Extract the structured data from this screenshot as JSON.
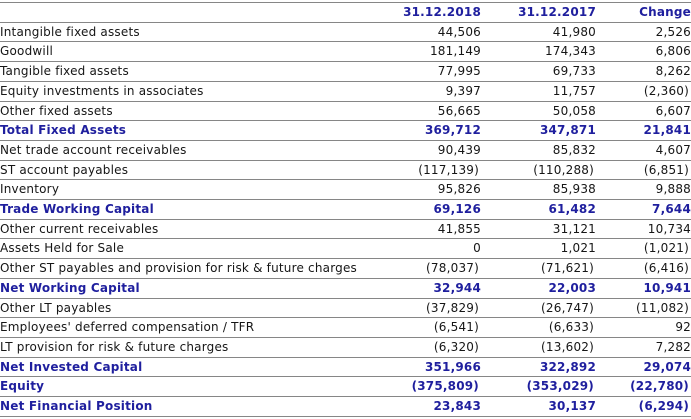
{
  "colors": {
    "accent_blue": "#1f1f9e",
    "body_text": "#161616",
    "rule_gray": "#868686",
    "background": "#ffffff"
  },
  "table": {
    "columns": [
      "",
      "31.12.2018",
      "31.12.2017",
      "Change"
    ],
    "rows": [
      {
        "label": "Intangible fixed assets",
        "v2018": "44,506",
        "v2017": "41,980",
        "change": "2,526",
        "emphasis": false
      },
      {
        "label": "Goodwill",
        "v2018": "181,149",
        "v2017": "174,343",
        "change": "6,806",
        "emphasis": false
      },
      {
        "label": "Tangible fixed assets",
        "v2018": "77,995",
        "v2017": "69,733",
        "change": "8,262",
        "emphasis": false
      },
      {
        "label": "Equity investments in associates",
        "v2018": "9,397",
        "v2017": "11,757",
        "change": "(2,360)",
        "emphasis": false
      },
      {
        "label": "Other fixed assets",
        "v2018": "56,665",
        "v2017": "50,058",
        "change": "6,607",
        "emphasis": false
      },
      {
        "label": "Total Fixed Assets",
        "v2018": "369,712",
        "v2017": "347,871",
        "change": "21,841",
        "emphasis": true
      },
      {
        "label": "Net trade account receivables",
        "v2018": "90,439",
        "v2017": "85,832",
        "change": "4,607",
        "emphasis": false
      },
      {
        "label": "ST account payables",
        "v2018": "(117,139)",
        "v2017": "(110,288)",
        "change": "(6,851)",
        "emphasis": false
      },
      {
        "label": "Inventory",
        "v2018": "95,826",
        "v2017": "85,938",
        "change": "9,888",
        "emphasis": false
      },
      {
        "label": "Trade Working Capital",
        "v2018": "69,126",
        "v2017": "61,482",
        "change": "7,644",
        "emphasis": true
      },
      {
        "label": "Other current receivables",
        "v2018": "41,855",
        "v2017": "31,121",
        "change": "10,734",
        "emphasis": false
      },
      {
        "label": "Assets Held for Sale",
        "v2018": "0",
        "v2017": "1,021",
        "change": "(1,021)",
        "emphasis": false
      },
      {
        "label": "Other ST payables and provision for risk & future charges",
        "v2018": "(78,037)",
        "v2017": "(71,621)",
        "change": "(6,416)",
        "emphasis": false
      },
      {
        "label": "Net Working Capital",
        "v2018": "32,944",
        "v2017": "22,003",
        "change": "10,941",
        "emphasis": true
      },
      {
        "label": "Other LT payables",
        "v2018": "(37,829)",
        "v2017": "(26,747)",
        "change": "(11,082)",
        "emphasis": false
      },
      {
        "label": "Employees' deferred compensation / TFR",
        "v2018": "(6,541)",
        "v2017": "(6,633)",
        "change": "92",
        "emphasis": false
      },
      {
        "label": "LT provision for risk & future charges",
        "v2018": "(6,320)",
        "v2017": "(13,602)",
        "change": "7,282",
        "emphasis": false
      },
      {
        "label": "Net Invested Capital",
        "v2018": "351,966",
        "v2017": "322,892",
        "change": "29,074",
        "emphasis": true
      },
      {
        "label": "Equity",
        "v2018": "(375,809)",
        "v2017": "(353,029)",
        "change": "(22,780)",
        "emphasis": true
      },
      {
        "label": "Net Financial Position",
        "v2018": "23,843",
        "v2017": "30,137",
        "change": "(6,294)",
        "emphasis": true
      }
    ]
  }
}
